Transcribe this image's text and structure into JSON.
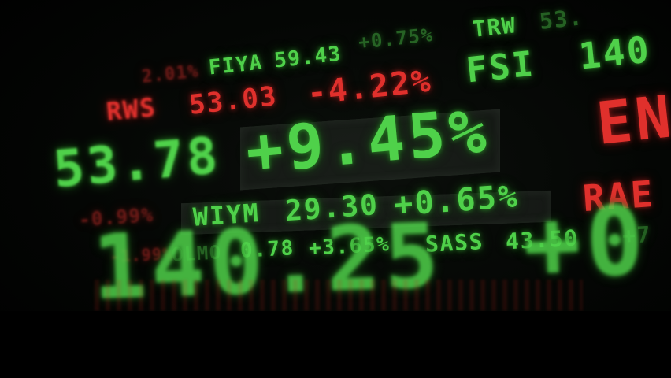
{
  "scene": {
    "background_color": "#000000",
    "green_color": "#4fd14a",
    "red_color": "#e0302c"
  },
  "row1": {
    "t1": "TRW",
    "t2": "53.",
    "t3": "+0.75%"
  },
  "row2": {
    "t0": "2.01%",
    "t1": "FIYA",
    "t2": "59.43",
    "t3": "FSI",
    "t4": "140"
  },
  "row3": {
    "t1": "RWS",
    "t2": "53.03",
    "t3": "-4.22%",
    "t4": "EN"
  },
  "row4": {
    "t1": "53.78",
    "t2": "+9.45%"
  },
  "row5": {
    "t0": "-0.99%",
    "t1": "WIYM",
    "t2": "29.30",
    "t3": "+0.65%",
    "t4": "RAE"
  },
  "row6": {
    "t0": "-1.99%",
    "t1": "OLMO",
    "t2": "0.78",
    "t3": "+3.65%",
    "t4": "SASS",
    "t5": "43.50",
    "t6": "+7"
  },
  "row7": {
    "t1": "140.25",
    "t2": "+0"
  }
}
